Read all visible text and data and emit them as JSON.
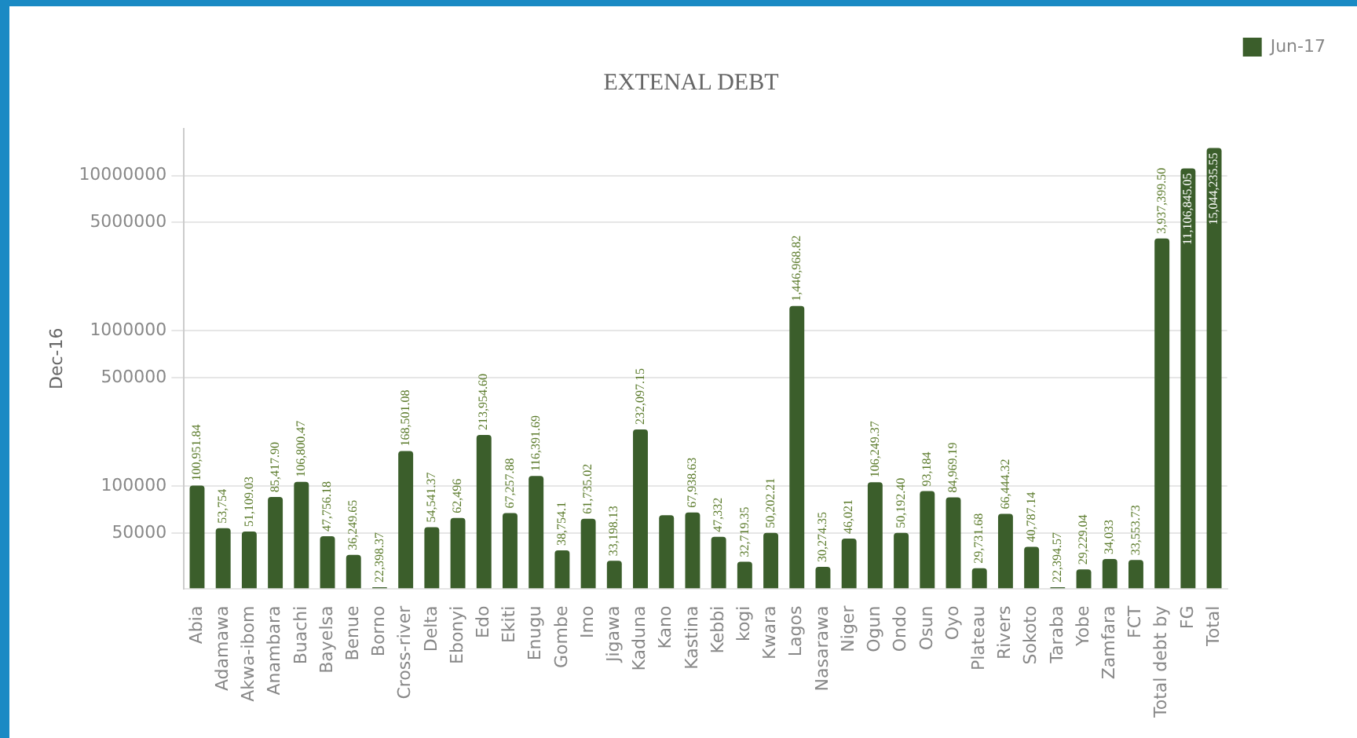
{
  "chart_data": {
    "type": "bar",
    "title": "EXTENAL DEBT",
    "ylabel": "Dec-16",
    "categories": [
      "Abia",
      "Adamawa",
      "Akwa-ibom",
      "Anambara",
      "Buachi",
      "Bayelsa",
      "Benue",
      "Borno",
      "Cross-river",
      "Delta",
      "Ebonyi",
      "Edo",
      "Ekiti",
      "Enugu",
      "Gombe",
      "Imo",
      "Jigawa",
      "Kaduna",
      "Kano",
      "Kastina",
      "Kebbi",
      "kogi",
      "Kwara",
      "Lagos",
      "Nasarawa",
      "Niger",
      "Ogun",
      "Ondo",
      "Osun",
      "Oyo",
      "Plateau",
      "Rivers",
      "Sokoto",
      "Taraba",
      "Yobe",
      "Zamfara",
      "FCT",
      "Total debt by",
      "FG",
      "Total"
    ],
    "series": [
      {
        "name": "Jun-17",
        "color": "#3b5e2b",
        "values": [
          100951.84,
          53754,
          51109.03,
          85417.9,
          106800.47,
          47756.18,
          36249.65,
          22398.37,
          168501.08,
          54541.37,
          62496,
          213954.6,
          67257.88,
          116391.69,
          38754.1,
          61735.02,
          33198.13,
          232097.15,
          65100,
          67938.63,
          47332,
          32719.35,
          50202.21,
          1446968.82,
          30274.35,
          46021,
          106249.37,
          50192.4,
          93184,
          84969.19,
          29731.68,
          66444.32,
          40787.14,
          22394.57,
          29229.04,
          34033,
          33553.73,
          3937399.5,
          11106845.05,
          15044235.55
        ],
        "value_labels": [
          "100,951.84",
          "53,754",
          "51,109.03",
          "85,417.90",
          "106,800.47",
          "47,756.18",
          "36,249.65",
          "22,398.37",
          "168,501.08",
          "54,541.37",
          "62,496",
          "213,954.60",
          "67,257.88",
          "116,391.69",
          "38,754.1",
          "61,735.02",
          "33,198.13",
          "232,097.15",
          null,
          "67,938.63",
          "47,332",
          "32,719.35",
          "50,202.21",
          "1,446,968.82",
          "30,274.35",
          "46,021",
          "106,249.37",
          "50,192.40",
          "93,184",
          "84,969.19",
          "29,731.68",
          "66,444.32",
          "40,787.14",
          "22,394.57",
          "29,229.04",
          "34,033",
          "33,553.73",
          "3,937,399.50",
          "11,106,845.05",
          "15,044,235.55"
        ]
      }
    ],
    "log": true,
    "ylim": [
      22000,
      20000000
    ],
    "yticks": [
      50000,
      100000,
      500000,
      1000000,
      5000000,
      10000000
    ],
    "grid": "y",
    "legend": "top right"
  }
}
